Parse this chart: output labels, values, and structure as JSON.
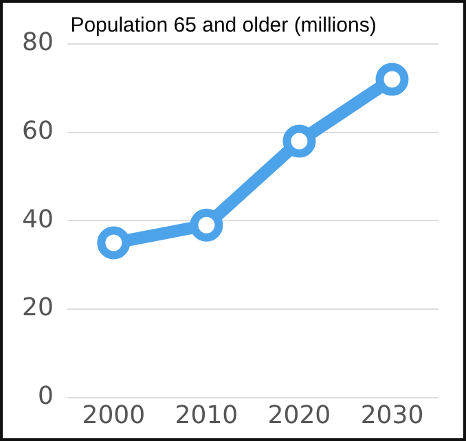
{
  "chart_data": {
    "type": "line",
    "title": "Population 65 and older (millions)",
    "categories": [
      "2000",
      "2010",
      "2020",
      "2030"
    ],
    "series": [
      {
        "color": "#4da3ea",
        "values": [
          35,
          39,
          58,
          72
        ]
      }
    ],
    "ylim": [
      0,
      80
    ],
    "yticks": [
      0,
      20,
      40,
      60,
      80
    ],
    "grid": "y",
    "marker": "circle",
    "legend": false
  }
}
